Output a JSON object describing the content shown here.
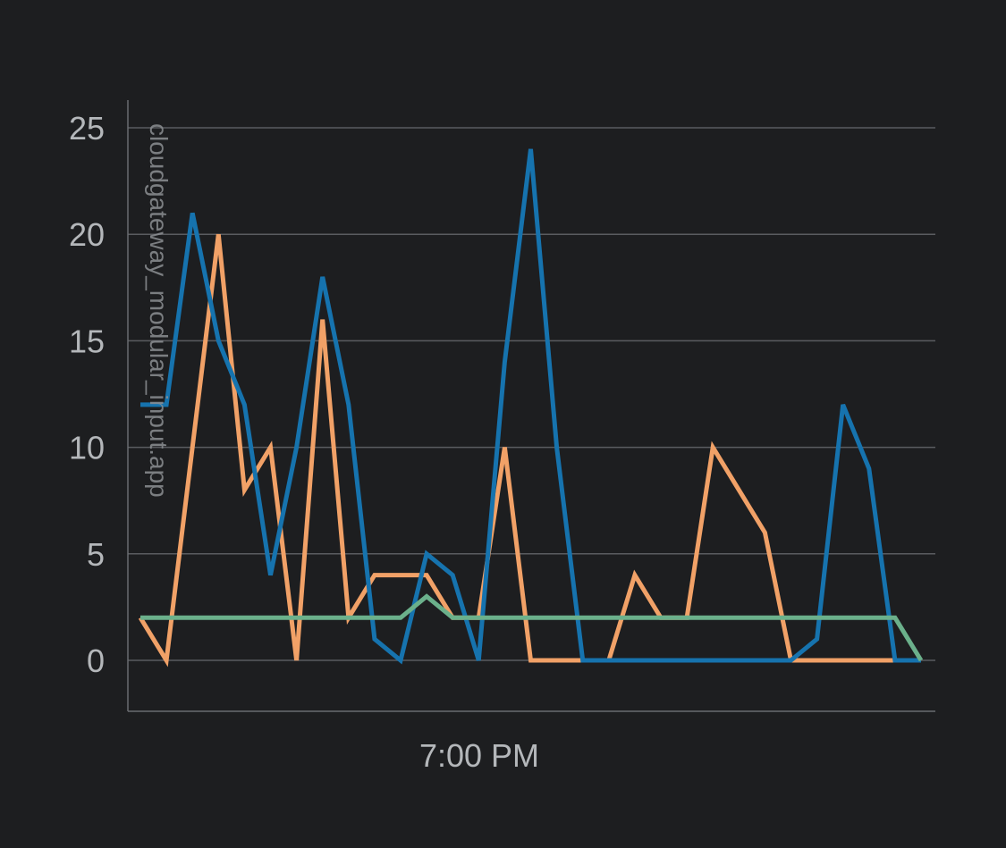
{
  "chart_data": {
    "type": "line",
    "title": "",
    "xlabel": "",
    "ylabel": "cloudgateway_modular_input.app",
    "x_tick_labels": [
      "7:00 PM"
    ],
    "y_ticks": [
      0,
      5,
      10,
      15,
      20,
      25
    ],
    "ylim": [
      -2.4,
      26.4
    ],
    "grid": "horizontal",
    "legend": "none",
    "series": [
      {
        "color": "#f1a167",
        "values": [
          2,
          0,
          10,
          20,
          8,
          10,
          0,
          16,
          2,
          4,
          4,
          4,
          2,
          2,
          10,
          0,
          0,
          0,
          0,
          4,
          2,
          2,
          10,
          8,
          6,
          0,
          0,
          0,
          0,
          0
        ]
      },
      {
        "color": "#1673ae",
        "values": [
          12,
          12,
          21,
          15,
          12,
          4,
          10,
          18,
          12,
          1,
          0,
          5,
          4,
          0,
          14,
          24,
          10,
          0,
          0,
          0,
          0,
          0,
          0,
          0,
          0,
          0,
          1,
          12,
          9,
          0,
          0
        ]
      },
      {
        "color": "#6bb08b",
        "values": [
          2,
          2,
          2,
          2,
          2,
          2,
          2,
          2,
          2,
          2,
          2,
          3,
          2,
          2,
          2,
          2,
          2,
          2,
          2,
          2,
          2,
          2,
          2,
          2,
          2,
          2,
          2,
          2,
          2,
          2,
          0
        ]
      }
    ]
  }
}
